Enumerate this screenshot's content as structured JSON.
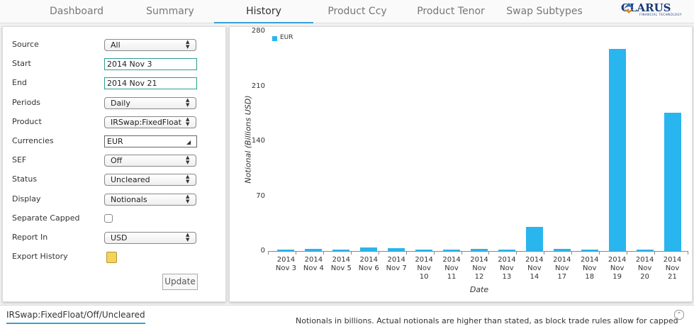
{
  "tabs": [
    "Dashboard",
    "Summary",
    "History",
    "Product Ccy",
    "Product Tenor",
    "Swap Subtypes"
  ],
  "logo": {
    "name": "CLARUS",
    "tagline": "FINANCIAL TECHNOLOGY"
  },
  "form": {
    "fields": [
      {
        "label": "Source",
        "value": "All",
        "kind": "select"
      },
      {
        "label": "Start",
        "value": "2014 Nov 3",
        "kind": "input"
      },
      {
        "label": "End",
        "value": "2014 Nov 21",
        "kind": "input"
      },
      {
        "label": "Periods",
        "value": "Daily",
        "kind": "select"
      },
      {
        "label": "Product",
        "value": "IRSwap:FixedFloat",
        "kind": "select"
      },
      {
        "label": "Currencies",
        "value": "EUR",
        "kind": "multi"
      },
      {
        "label": "SEF",
        "value": "Off",
        "kind": "select"
      },
      {
        "label": "Status",
        "value": "Uncleared",
        "kind": "select"
      },
      {
        "label": "Display",
        "value": "Notionals",
        "kind": "select"
      },
      {
        "label": "Separate Capped",
        "kind": "checkbox"
      },
      {
        "label": "Report In",
        "value": "USD",
        "kind": "select"
      },
      {
        "label": "Export History",
        "kind": "icon"
      }
    ],
    "button": "Update"
  },
  "chart_data": {
    "type": "bar",
    "categories": [
      "2014 Nov 3",
      "2014 Nov 4",
      "2014 Nov 5",
      "2014 Nov 6",
      "2014 Nov 7",
      "2014 Nov 10",
      "2014 Nov 11",
      "2014 Nov 12",
      "2014 Nov 13",
      "2014 Nov 14",
      "2014 Nov 17",
      "2014 Nov 18",
      "2014 Nov 19",
      "2014 Nov 20",
      "2014 Nov 21"
    ],
    "series": [
      {
        "name": "EUR",
        "color": "#29b5ee",
        "values": [
          2,
          3,
          2,
          4.5,
          3.5,
          1.5,
          1.5,
          2.5,
          2,
          31,
          3,
          2,
          257,
          2,
          176
        ]
      }
    ],
    "ylim": [
      0,
      280
    ],
    "yticks": [
      0,
      70,
      140,
      210,
      280
    ],
    "y_label": "Notional (Billions USD)",
    "x_label": "Date",
    "legend": "top-left",
    "grid": false
  },
  "footer": {
    "tab": "IRSwap:FixedFloat/Off/Uncleared",
    "note": "Notionals in billions. Actual notionals are higher than stated, as block trade rules allow for capped"
  }
}
